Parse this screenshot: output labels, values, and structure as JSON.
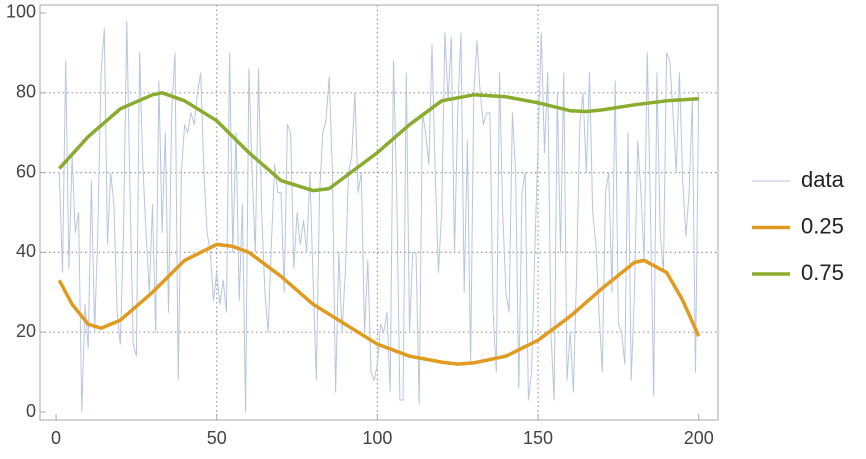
{
  "chart_data": {
    "type": "line",
    "xlim": [
      -5,
      206
    ],
    "ylim": [
      -2,
      102
    ],
    "xticks": [
      0,
      50,
      100,
      150,
      200
    ],
    "yticks": [
      0,
      20,
      40,
      60,
      80,
      100
    ],
    "xgrid": [
      50,
      100,
      150
    ],
    "ygrid": [
      20,
      40,
      60,
      80
    ],
    "legend": "right",
    "series": [
      {
        "name": "data",
        "color": "#b7c6de",
        "x": [
          1,
          2,
          3,
          4,
          5,
          6,
          7,
          8,
          9,
          10,
          11,
          12,
          13,
          14,
          15,
          16,
          17,
          18,
          19,
          20,
          21,
          22,
          23,
          24,
          25,
          26,
          27,
          28,
          29,
          30,
          31,
          32,
          33,
          34,
          35,
          36,
          37,
          38,
          39,
          40,
          41,
          42,
          43,
          44,
          45,
          46,
          47,
          48,
          49,
          50,
          51,
          52,
          53,
          54,
          55,
          56,
          57,
          58,
          59,
          60,
          61,
          62,
          63,
          64,
          65,
          66,
          67,
          68,
          69,
          70,
          71,
          72,
          73,
          74,
          75,
          76,
          77,
          78,
          79,
          80,
          81,
          82,
          83,
          84,
          85,
          86,
          87,
          88,
          89,
          90,
          91,
          92,
          93,
          94,
          95,
          96,
          97,
          98,
          99,
          100,
          101,
          102,
          103,
          104,
          105,
          106,
          107,
          108,
          109,
          110,
          111,
          112,
          113,
          114,
          115,
          116,
          117,
          118,
          119,
          120,
          121,
          122,
          123,
          124,
          125,
          126,
          127,
          128,
          129,
          130,
          131,
          132,
          133,
          134,
          135,
          136,
          137,
          138,
          139,
          140,
          141,
          142,
          143,
          144,
          145,
          146,
          147,
          148,
          149,
          150,
          151,
          152,
          153,
          154,
          155,
          156,
          157,
          158,
          159,
          160,
          161,
          162,
          163,
          164,
          165,
          166,
          167,
          168,
          169,
          170,
          171,
          172,
          173,
          174,
          175,
          176,
          177,
          178,
          179,
          180,
          181,
          182,
          183,
          184,
          185,
          186,
          187,
          188,
          189,
          190,
          191,
          192,
          193,
          194,
          195,
          196,
          197,
          198,
          199,
          200
        ],
        "values": [
          60,
          35,
          88,
          36,
          64,
          45,
          50,
          0,
          27,
          16,
          58,
          20,
          45,
          85,
          96,
          42,
          60,
          52,
          25,
          17,
          45,
          98,
          55,
          17,
          14,
          90,
          62,
          45,
          30,
          52,
          20,
          83,
          45,
          70,
          25,
          75,
          90,
          8,
          60,
          72,
          70,
          75,
          72,
          80,
          85,
          60,
          45,
          40,
          28,
          35,
          27,
          33,
          25,
          90,
          40,
          70,
          28,
          52,
          0,
          86,
          60,
          40,
          86,
          50,
          30,
          20,
          42,
          62,
          55,
          55,
          30,
          72,
          70,
          36,
          50,
          42,
          48,
          40,
          60,
          33,
          8,
          55,
          70,
          73,
          84,
          60,
          5,
          40,
          20,
          35,
          60,
          64,
          80,
          55,
          60,
          20,
          38,
          10,
          8,
          12,
          22,
          20,
          25,
          5,
          88,
          55,
          3,
          3,
          85,
          20,
          40,
          40,
          2,
          75,
          70,
          62,
          92,
          60,
          35,
          50,
          95,
          78,
          94,
          40,
          75,
          95,
          30,
          68,
          12,
          80,
          93,
          80,
          72,
          75,
          75,
          25,
          10,
          85,
          50,
          30,
          25,
          75,
          60,
          6,
          55,
          60,
          3,
          10,
          40,
          68,
          95,
          65,
          85,
          20,
          3,
          80,
          40,
          85,
          8,
          20,
          5,
          35,
          72,
          80,
          60,
          85,
          50,
          42,
          25,
          10,
          55,
          60,
          30,
          83,
          22,
          20,
          12,
          70,
          8,
          30,
          68,
          55,
          38,
          90,
          50,
          4,
          85,
          45,
          35,
          90,
          88,
          75,
          60,
          85,
          58,
          44,
          55,
          78,
          10,
          80
        ]
      },
      {
        "name": "0.25",
        "color": "#e09a1e",
        "x": [
          1,
          5,
          10,
          14,
          20,
          30,
          40,
          50,
          55,
          60,
          70,
          80,
          90,
          100,
          110,
          120,
          125,
          130,
          140,
          150,
          160,
          170,
          180,
          183,
          190,
          195,
          200
        ],
        "values": [
          33,
          27,
          22,
          21,
          23,
          30,
          38,
          42,
          41.5,
          40,
          34,
          27,
          22,
          17,
          14,
          12.5,
          12,
          12.3,
          14,
          18,
          24,
          31,
          37.5,
          38,
          35,
          28,
          19
        ]
      },
      {
        "name": "0.75",
        "color": "#8aab2e",
        "x": [
          1,
          10,
          20,
          30,
          33,
          40,
          50,
          60,
          70,
          80,
          85,
          90,
          100,
          110,
          120,
          130,
          140,
          150,
          160,
          165,
          170,
          180,
          190,
          200
        ],
        "values": [
          61,
          69,
          76,
          79.5,
          80,
          78,
          73,
          65,
          58,
          55.5,
          56,
          59,
          65,
          72,
          78,
          79.5,
          79,
          77.5,
          75.5,
          75.3,
          75.7,
          77,
          78,
          78.5
        ]
      }
    ]
  }
}
